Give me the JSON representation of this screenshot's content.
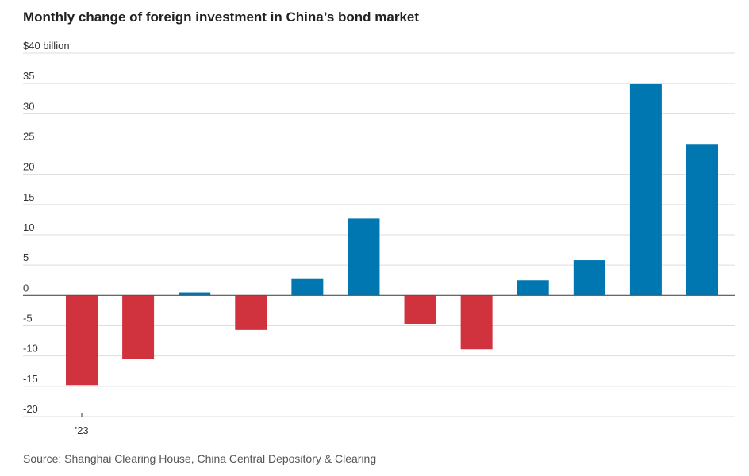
{
  "title": "Monthly change of foreign investment in China’s bond market",
  "source": "Source: Shanghai Clearing House, China Central Depository & Clearing",
  "colors": {
    "positive": "#0077b0",
    "negative": "#d0333d",
    "grid": "#dddddd",
    "baseline": "#555555"
  },
  "chart_data": {
    "type": "bar",
    "title": "Monthly change of foreign investment in China’s bond market",
    "ylabel": "$40 billion",
    "ylim": [
      -20,
      40
    ],
    "y_ticks": [
      {
        "value": 40,
        "label": "$40 billion"
      },
      {
        "value": 35,
        "label": "35"
      },
      {
        "value": 30,
        "label": "30"
      },
      {
        "value": 25,
        "label": "25"
      },
      {
        "value": 20,
        "label": "20"
      },
      {
        "value": 15,
        "label": "15"
      },
      {
        "value": 10,
        "label": "10"
      },
      {
        "value": 5,
        "label": "5"
      },
      {
        "value": 0,
        "label": "0"
      },
      {
        "value": -5,
        "label": "-5"
      },
      {
        "value": -10,
        "label": "-10"
      },
      {
        "value": -15,
        "label": "-15"
      },
      {
        "value": -20,
        "label": "-20"
      }
    ],
    "x_label": "’23",
    "grid": true,
    "values": [
      -14.8,
      -10.5,
      0.5,
      -5.7,
      2.7,
      12.7,
      -4.8,
      -8.9,
      2.5,
      5.8,
      34.9,
      24.9
    ]
  }
}
